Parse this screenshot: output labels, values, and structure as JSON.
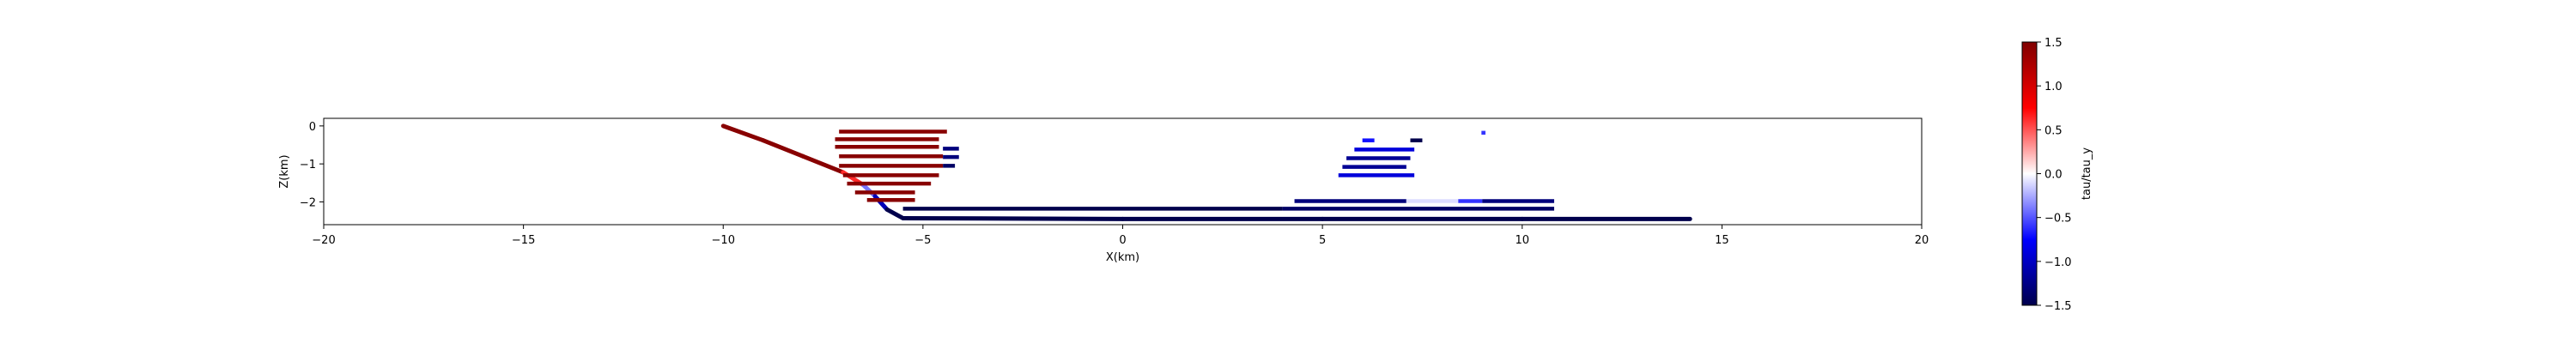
{
  "chart_data": {
    "type": "scatter",
    "xlabel": "X(km)",
    "ylabel": "Z(km)",
    "xlim": [
      -20,
      20
    ],
    "ylim": [
      -2.6,
      0.2
    ],
    "xticks": [
      -20,
      -15,
      -10,
      -5,
      0,
      5,
      10,
      15,
      20
    ],
    "yticks": [
      0,
      -1,
      -2
    ],
    "colorbar": {
      "label": "tau/tau_y",
      "cmap": "seismic",
      "range": [
        -1.5,
        1.5
      ],
      "ticks": [
        1.5,
        1.0,
        0.5,
        0.0,
        -0.5,
        -1.0,
        -1.5
      ],
      "tick_labels": [
        "1.5",
        "1.0",
        "0.5",
        "0.0",
        "−0.5",
        "−1.0",
        "−1.5"
      ]
    },
    "series": [
      {
        "role": "fault",
        "points": [
          {
            "x": -10.0,
            "y": 0.0,
            "v": 1.45
          },
          {
            "x": -9.0,
            "y": -0.38,
            "v": 1.45
          },
          {
            "x": -8.0,
            "y": -0.8,
            "v": 1.45
          },
          {
            "x": -7.0,
            "y": -1.22,
            "v": 1.45
          },
          {
            "x": -6.5,
            "y": -1.55,
            "v": -0.2
          },
          {
            "x": -6.2,
            "y": -1.85,
            "v": -0.6
          },
          {
            "x": -5.9,
            "y": -2.2,
            "v": -1.5
          },
          {
            "x": -5.5,
            "y": -2.43,
            "v": -1.5
          },
          {
            "x": 0.0,
            "y": -2.45,
            "v": -1.5
          },
          {
            "x": 5.0,
            "y": -2.45,
            "v": -1.5
          },
          {
            "x": 10.0,
            "y": -2.45,
            "v": -1.5
          },
          {
            "x": 14.2,
            "y": -2.45,
            "v": -1.5
          }
        ]
      },
      {
        "role": "damage-segments",
        "segments": [
          {
            "x0": -7.1,
            "x1": -4.4,
            "y": -0.15,
            "v": 1.45
          },
          {
            "x0": -7.2,
            "x1": -4.6,
            "y": -0.35,
            "v": 1.45
          },
          {
            "x0": -7.2,
            "x1": -4.6,
            "y": -0.55,
            "v": 1.45
          },
          {
            "x0": -7.1,
            "x1": -4.5,
            "y": -0.8,
            "v": 1.45
          },
          {
            "x0": -7.1,
            "x1": -4.5,
            "y": -1.05,
            "v": 1.45
          },
          {
            "x0": -7.0,
            "x1": -4.6,
            "y": -1.3,
            "v": 1.45
          },
          {
            "x0": -6.9,
            "x1": -4.8,
            "y": -1.52,
            "v": 1.45
          },
          {
            "x0": -6.7,
            "x1": -5.2,
            "y": -1.75,
            "v": 1.45
          },
          {
            "x0": -6.4,
            "x1": -5.2,
            "y": -1.95,
            "v": 1.45
          },
          {
            "x0": -4.5,
            "x1": -4.1,
            "y": -0.6,
            "v": -1.3
          },
          {
            "x0": -4.5,
            "x1": -4.1,
            "y": -0.82,
            "v": -1.3
          },
          {
            "x0": -4.5,
            "x1": -4.2,
            "y": -1.05,
            "v": -1.4
          },
          {
            "x0": -5.5,
            "x1": 4.0,
            "y": -2.18,
            "v": -1.5
          },
          {
            "x0": 4.3,
            "x1": 7.1,
            "y": -1.98,
            "v": -1.3
          },
          {
            "x0": 7.1,
            "x1": 8.4,
            "y": -1.98,
            "v": -0.1
          },
          {
            "x0": 8.4,
            "x1": 9.0,
            "y": -1.98,
            "v": -0.6
          },
          {
            "x0": 9.0,
            "x1": 10.8,
            "y": -1.98,
            "v": -1.3
          },
          {
            "x0": 4.0,
            "x1": 10.8,
            "y": -2.18,
            "v": -1.4
          },
          {
            "x0": 6.0,
            "x1": 6.3,
            "y": -0.38,
            "v": -0.7
          },
          {
            "x0": 7.2,
            "x1": 7.5,
            "y": -0.38,
            "v": -1.5
          },
          {
            "x0": 5.8,
            "x1": 7.3,
            "y": -0.62,
            "v": -0.9
          },
          {
            "x0": 5.6,
            "x1": 7.2,
            "y": -0.85,
            "v": -1.2
          },
          {
            "x0": 5.5,
            "x1": 7.1,
            "y": -1.08,
            "v": -1.2
          },
          {
            "x0": 5.4,
            "x1": 7.3,
            "y": -1.3,
            "v": -0.9
          },
          {
            "x0": 8.98,
            "x1": 9.08,
            "y": -0.18,
            "v": -0.6
          }
        ]
      }
    ]
  }
}
